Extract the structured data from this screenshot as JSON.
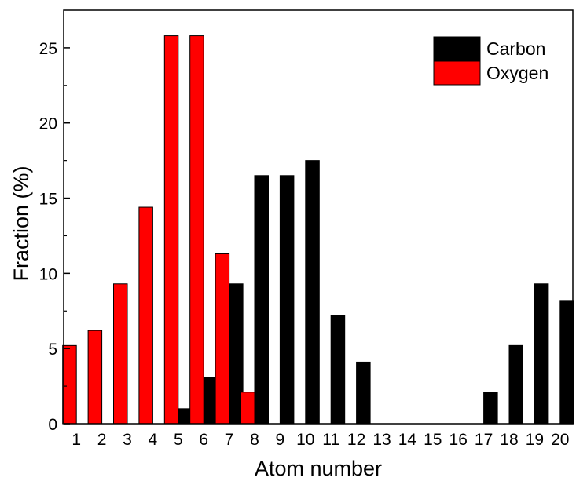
{
  "chart_data": {
    "type": "bar",
    "xlabel": "Atom number",
    "ylabel": "Fraction (%)",
    "categories": [
      "1",
      "2",
      "3",
      "4",
      "5",
      "6",
      "7",
      "8",
      "9",
      "10",
      "11",
      "12",
      "13",
      "14",
      "15",
      "16",
      "17",
      "18",
      "19",
      "20"
    ],
    "ylim": [
      0,
      27.5
    ],
    "yticks": [
      "0",
      "5",
      "10",
      "15",
      "20",
      "25"
    ],
    "legend_position": "top-right",
    "grid": false,
    "series": [
      {
        "name": "Carbon",
        "color": "#000000",
        "values": [
          0,
          0,
          0,
          0,
          1.0,
          3.1,
          9.3,
          16.5,
          16.5,
          17.5,
          7.2,
          4.1,
          0,
          0,
          0,
          0,
          2.1,
          5.2,
          9.3,
          8.2
        ]
      },
      {
        "name": "Oxygen",
        "color": "#ff0000",
        "values": [
          5.2,
          6.2,
          9.3,
          14.4,
          25.8,
          25.8,
          11.3,
          2.1,
          0,
          0,
          0,
          0,
          0,
          0,
          0,
          0,
          0,
          0,
          0,
          0
        ]
      }
    ]
  }
}
